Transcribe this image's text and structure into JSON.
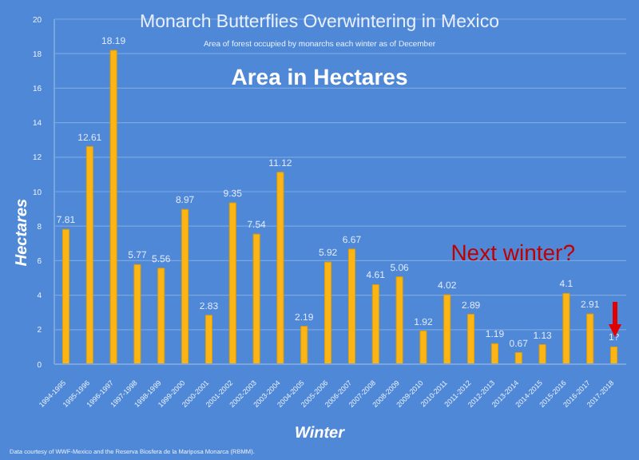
{
  "chart_data": {
    "type": "bar",
    "title": "Monarch Butterflies Overwintering in Mexico",
    "subtitle": "Area of forest occupied by monarchs each winter as of December",
    "xlabel": "Winter",
    "ylabel": "Hectares",
    "categories": [
      "1994-1995",
      "1995-1996",
      "1996-1997",
      "1997-1998",
      "1998-1999",
      "1999-2000",
      "2000-2001",
      "2001-2002",
      "2002-2003",
      "2003-2004",
      "2004-2005",
      "2005-2006",
      "2006-2007",
      "2007-2008",
      "2008-2009",
      "2009-2010",
      "2010-2011",
      "2011-2012",
      "2012-2013",
      "2013-2014",
      "2014-2015",
      "2015-2016",
      "2016-2017",
      "2017-2018"
    ],
    "values": [
      7.81,
      12.61,
      18.19,
      5.77,
      5.56,
      8.97,
      2.83,
      9.35,
      7.54,
      11.12,
      2.19,
      5.92,
      6.67,
      4.61,
      5.06,
      1.92,
      4.02,
      2.89,
      1.19,
      0.67,
      1.13,
      4.1,
      2.91,
      1
    ],
    "value_labels": [
      "7.81",
      "12.61",
      "18.19",
      "5.77",
      "5.56",
      "8.97",
      "2.83",
      "9.35",
      "7.54",
      "11.12",
      "2.19",
      "5.92",
      "6.67",
      "4.61",
      "5.06",
      "1.92",
      "4.02",
      "2.89",
      "1.19",
      "0.67",
      "1.13",
      "4.1",
      "2.91",
      "1?"
    ],
    "color": "#fdb515",
    "ylim": [
      0,
      20
    ],
    "yticks": [
      0,
      2,
      4,
      6,
      8,
      10,
      12,
      14,
      16,
      18,
      20
    ],
    "grid": "y",
    "annotations": [
      "Area in Hectares",
      "Next winter?",
      "Data courtesy of WWF-Mexico and the Reserva Biosfera de la Mariposa Monarca (RBMM)."
    ]
  }
}
